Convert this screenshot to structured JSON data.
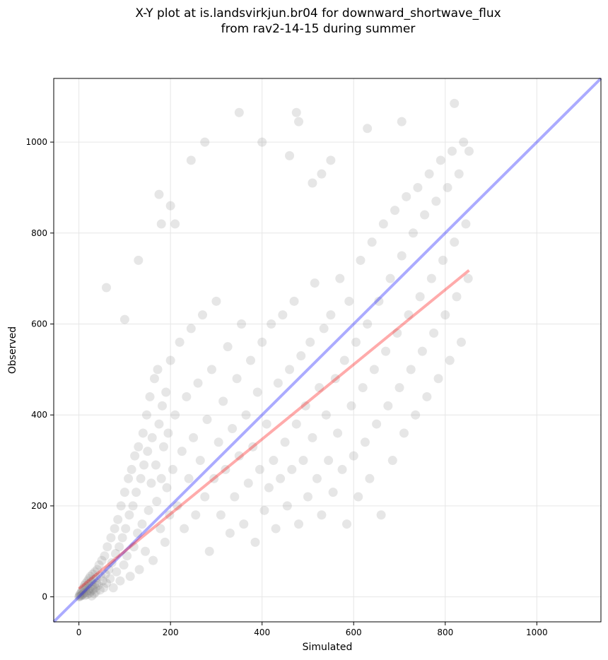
{
  "title_line1": "X-Y plot at is.landsvirkjun.br04 for downward_shortwave_flux",
  "title_line2": "from rav2-14-15 during summer",
  "chart_data": {
    "type": "scatter",
    "title": "X-Y plot at is.landsvirkjun.br04 for downward_shortwave_flux from rav2-14-15 during summer",
    "xlabel": "Simulated",
    "ylabel": "Observed",
    "xlim": [
      -55,
      1140
    ],
    "ylim": [
      -55,
      1140
    ],
    "xticks": [
      0,
      200,
      400,
      600,
      800,
      1000
    ],
    "yticks": [
      0,
      200,
      400,
      600,
      800,
      1000
    ],
    "grid": true,
    "point_color": "#808080",
    "one_to_one_line": {
      "color": "#0000ff",
      "from": [
        -55,
        -55
      ],
      "to": [
        1140,
        1140
      ]
    },
    "regression_line": {
      "color": "#ff0000",
      "from": [
        0,
        18
      ],
      "to": [
        852,
        718
      ]
    },
    "points": [
      [
        0,
        0
      ],
      [
        1,
        2
      ],
      [
        2,
        5
      ],
      [
        3,
        1
      ],
      [
        4,
        8
      ],
      [
        5,
        3
      ],
      [
        6,
        12
      ],
      [
        7,
        4
      ],
      [
        8,
        15
      ],
      [
        9,
        6
      ],
      [
        10,
        20
      ],
      [
        11,
        9
      ],
      [
        12,
        25
      ],
      [
        13,
        3
      ],
      [
        14,
        18
      ],
      [
        15,
        30
      ],
      [
        16,
        10
      ],
      [
        17,
        22
      ],
      [
        18,
        5
      ],
      [
        19,
        35
      ],
      [
        20,
        14
      ],
      [
        21,
        28
      ],
      [
        22,
        40
      ],
      [
        23,
        8
      ],
      [
        24,
        19
      ],
      [
        25,
        45
      ],
      [
        26,
        12
      ],
      [
        27,
        33
      ],
      [
        28,
        2
      ],
      [
        29,
        24
      ],
      [
        30,
        50
      ],
      [
        31,
        16
      ],
      [
        32,
        38
      ],
      [
        33,
        7
      ],
      [
        34,
        27
      ],
      [
        35,
        55
      ],
      [
        36,
        20
      ],
      [
        37,
        11
      ],
      [
        38,
        42
      ],
      [
        39,
        30
      ],
      [
        40,
        60
      ],
      [
        42,
        25
      ],
      [
        44,
        70
      ],
      [
        46,
        15
      ],
      [
        48,
        45
      ],
      [
        50,
        80
      ],
      [
        52,
        35
      ],
      [
        54,
        20
      ],
      [
        56,
        90
      ],
      [
        58,
        50
      ],
      [
        60,
        30
      ],
      [
        62,
        110
      ],
      [
        65,
        60
      ],
      [
        68,
        40
      ],
      [
        70,
        130
      ],
      [
        72,
        75
      ],
      [
        75,
        20
      ],
      [
        78,
        150
      ],
      [
        80,
        95
      ],
      [
        82,
        55
      ],
      [
        85,
        170
      ],
      [
        88,
        110
      ],
      [
        90,
        35
      ],
      [
        92,
        200
      ],
      [
        95,
        130
      ],
      [
        98,
        70
      ],
      [
        100,
        230
      ],
      [
        102,
        150
      ],
      [
        105,
        90
      ],
      [
        108,
        260
      ],
      [
        110,
        180
      ],
      [
        112,
        45
      ],
      [
        115,
        280
      ],
      [
        118,
        200
      ],
      [
        120,
        110
      ],
      [
        122,
        310
      ],
      [
        125,
        230
      ],
      [
        128,
        140
      ],
      [
        130,
        330
      ],
      [
        132,
        60
      ],
      [
        135,
        260
      ],
      [
        138,
        160
      ],
      [
        140,
        360
      ],
      [
        142,
        290
      ],
      [
        145,
        100
      ],
      [
        148,
        400
      ],
      [
        150,
        320
      ],
      [
        152,
        190
      ],
      [
        155,
        440
      ],
      [
        158,
        250
      ],
      [
        160,
        350
      ],
      [
        162,
        80
      ],
      [
        165,
        480
      ],
      [
        168,
        290
      ],
      [
        170,
        210
      ],
      [
        172,
        500
      ],
      [
        175,
        380
      ],
      [
        178,
        150
      ],
      [
        180,
        260
      ],
      [
        182,
        420
      ],
      [
        185,
        330
      ],
      [
        188,
        120
      ],
      [
        190,
        450
      ],
      [
        192,
        240
      ],
      [
        195,
        360
      ],
      [
        198,
        180
      ],
      [
        200,
        520
      ],
      [
        205,
        280
      ],
      [
        210,
        400
      ],
      [
        215,
        200
      ],
      [
        220,
        560
      ],
      [
        225,
        320
      ],
      [
        230,
        150
      ],
      [
        235,
        440
      ],
      [
        240,
        260
      ],
      [
        245,
        590
      ],
      [
        250,
        350
      ],
      [
        255,
        180
      ],
      [
        260,
        470
      ],
      [
        265,
        300
      ],
      [
        270,
        620
      ],
      [
        275,
        220
      ],
      [
        280,
        390
      ],
      [
        285,
        100
      ],
      [
        290,
        500
      ],
      [
        295,
        260
      ],
      [
        300,
        650
      ],
      [
        305,
        340
      ],
      [
        310,
        180
      ],
      [
        315,
        430
      ],
      [
        320,
        280
      ],
      [
        325,
        550
      ],
      [
        330,
        140
      ],
      [
        335,
        370
      ],
      [
        340,
        220
      ],
      [
        345,
        480
      ],
      [
        350,
        310
      ],
      [
        355,
        600
      ],
      [
        360,
        160
      ],
      [
        365,
        400
      ],
      [
        370,
        250
      ],
      [
        375,
        520
      ],
      [
        380,
        330
      ],
      [
        385,
        120
      ],
      [
        390,
        450
      ],
      [
        395,
        280
      ],
      [
        400,
        560
      ],
      [
        405,
        190
      ],
      [
        410,
        380
      ],
      [
        415,
        240
      ],
      [
        420,
        600
      ],
      [
        425,
        300
      ],
      [
        430,
        150
      ],
      [
        435,
        470
      ],
      [
        440,
        260
      ],
      [
        445,
        620
      ],
      [
        450,
        340
      ],
      [
        455,
        200
      ],
      [
        460,
        500
      ],
      [
        465,
        280
      ],
      [
        470,
        650
      ],
      [
        475,
        380
      ],
      [
        480,
        160
      ],
      [
        485,
        530
      ],
      [
        490,
        300
      ],
      [
        495,
        420
      ],
      [
        500,
        220
      ],
      [
        505,
        560
      ],
      [
        510,
        350
      ],
      [
        515,
        690
      ],
      [
        520,
        260
      ],
      [
        525,
        460
      ],
      [
        530,
        180
      ],
      [
        535,
        590
      ],
      [
        540,
        400
      ],
      [
        545,
        300
      ],
      [
        550,
        620
      ],
      [
        555,
        230
      ],
      [
        560,
        480
      ],
      [
        565,
        360
      ],
      [
        570,
        700
      ],
      [
        575,
        280
      ],
      [
        580,
        520
      ],
      [
        585,
        160
      ],
      [
        590,
        650
      ],
      [
        595,
        420
      ],
      [
        600,
        310
      ],
      [
        605,
        560
      ],
      [
        610,
        220
      ],
      [
        615,
        740
      ],
      [
        620,
        460
      ],
      [
        625,
        340
      ],
      [
        630,
        600
      ],
      [
        635,
        260
      ],
      [
        640,
        780
      ],
      [
        645,
        500
      ],
      [
        650,
        380
      ],
      [
        655,
        650
      ],
      [
        660,
        180
      ],
      [
        665,
        820
      ],
      [
        670,
        540
      ],
      [
        675,
        420
      ],
      [
        680,
        700
      ],
      [
        685,
        300
      ],
      [
        690,
        850
      ],
      [
        695,
        580
      ],
      [
        700,
        460
      ],
      [
        705,
        750
      ],
      [
        710,
        360
      ],
      [
        715,
        880
      ],
      [
        720,
        620
      ],
      [
        725,
        500
      ],
      [
        730,
        800
      ],
      [
        735,
        400
      ],
      [
        740,
        900
      ],
      [
        745,
        660
      ],
      [
        750,
        540
      ],
      [
        755,
        840
      ],
      [
        760,
        440
      ],
      [
        765,
        930
      ],
      [
        770,
        700
      ],
      [
        775,
        580
      ],
      [
        780,
        870
      ],
      [
        785,
        480
      ],
      [
        790,
        960
      ],
      [
        795,
        740
      ],
      [
        800,
        620
      ],
      [
        805,
        900
      ],
      [
        810,
        520
      ],
      [
        815,
        980
      ],
      [
        820,
        780
      ],
      [
        825,
        660
      ],
      [
        830,
        930
      ],
      [
        835,
        560
      ],
      [
        840,
        1000
      ],
      [
        845,
        820
      ],
      [
        850,
        700
      ],
      [
        852,
        980
      ],
      [
        60,
        680
      ],
      [
        100,
        610
      ],
      [
        130,
        740
      ],
      [
        175,
        885
      ],
      [
        180,
        820
      ],
      [
        200,
        860
      ],
      [
        210,
        820
      ],
      [
        245,
        960
      ],
      [
        275,
        1000
      ],
      [
        350,
        1065
      ],
      [
        400,
        1000
      ],
      [
        460,
        970
      ],
      [
        475,
        1065
      ],
      [
        480,
        1045
      ],
      [
        510,
        910
      ],
      [
        530,
        930
      ],
      [
        550,
        960
      ],
      [
        630,
        1030
      ],
      [
        705,
        1045
      ],
      [
        820,
        1085
      ]
    ]
  }
}
